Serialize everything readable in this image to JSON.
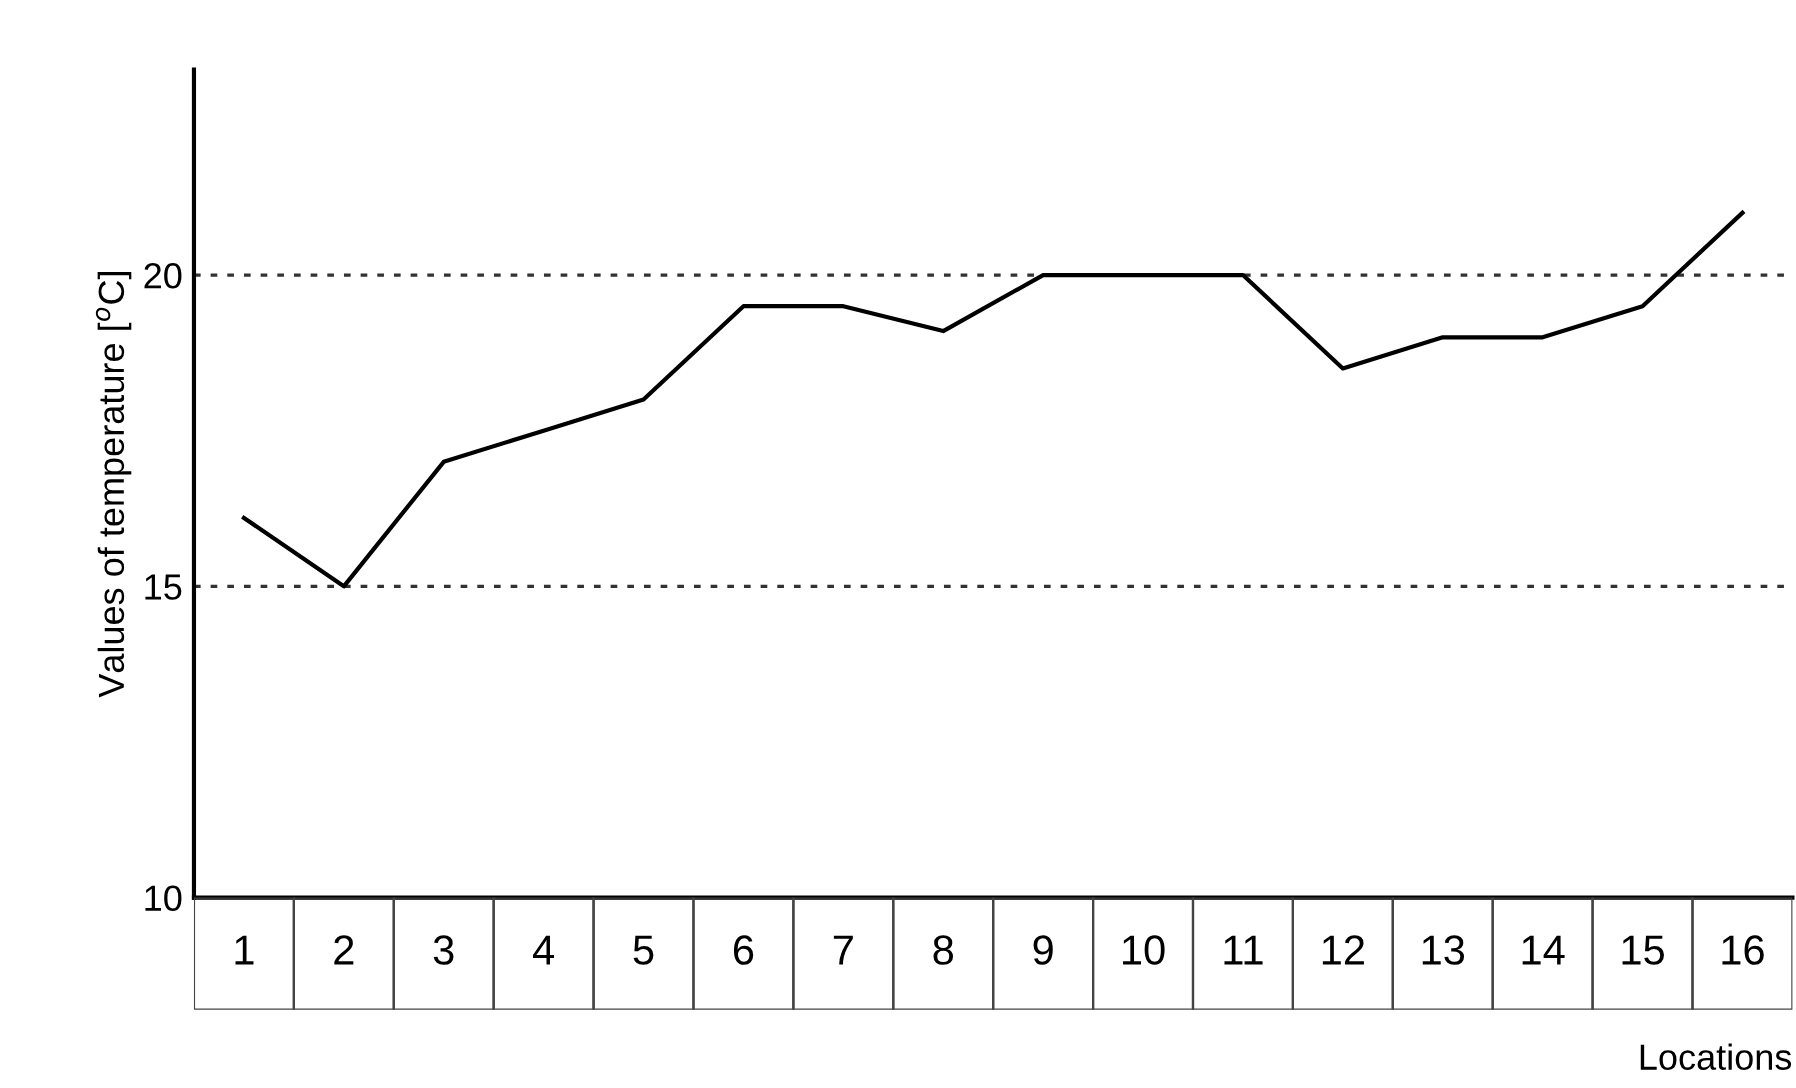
{
  "chart_data": {
    "type": "line",
    "xlabel": "Locations",
    "ylabel": "Values of temperature [$^{o}$C]",
    "categories": [
      "1",
      "2",
      "3",
      "4",
      "5",
      "6",
      "7",
      "8",
      "9",
      "10",
      "11",
      "12",
      "13",
      "14",
      "15",
      "16"
    ],
    "series": [
      {
        "color": "#000000",
        "values": [
          16.1,
          15.0,
          17.0,
          17.5,
          18.0,
          19.5,
          19.5,
          19.1,
          20.0,
          20.0,
          20.0,
          18.5,
          19.0,
          19.0,
          19.5,
          21.0
        ]
      }
    ],
    "ylim": [
      10,
      23.3
    ],
    "yticks": [
      10,
      15,
      20
    ],
    "grid": "y",
    "line_style": "solid",
    "marker": "none",
    "legend": false
  }
}
